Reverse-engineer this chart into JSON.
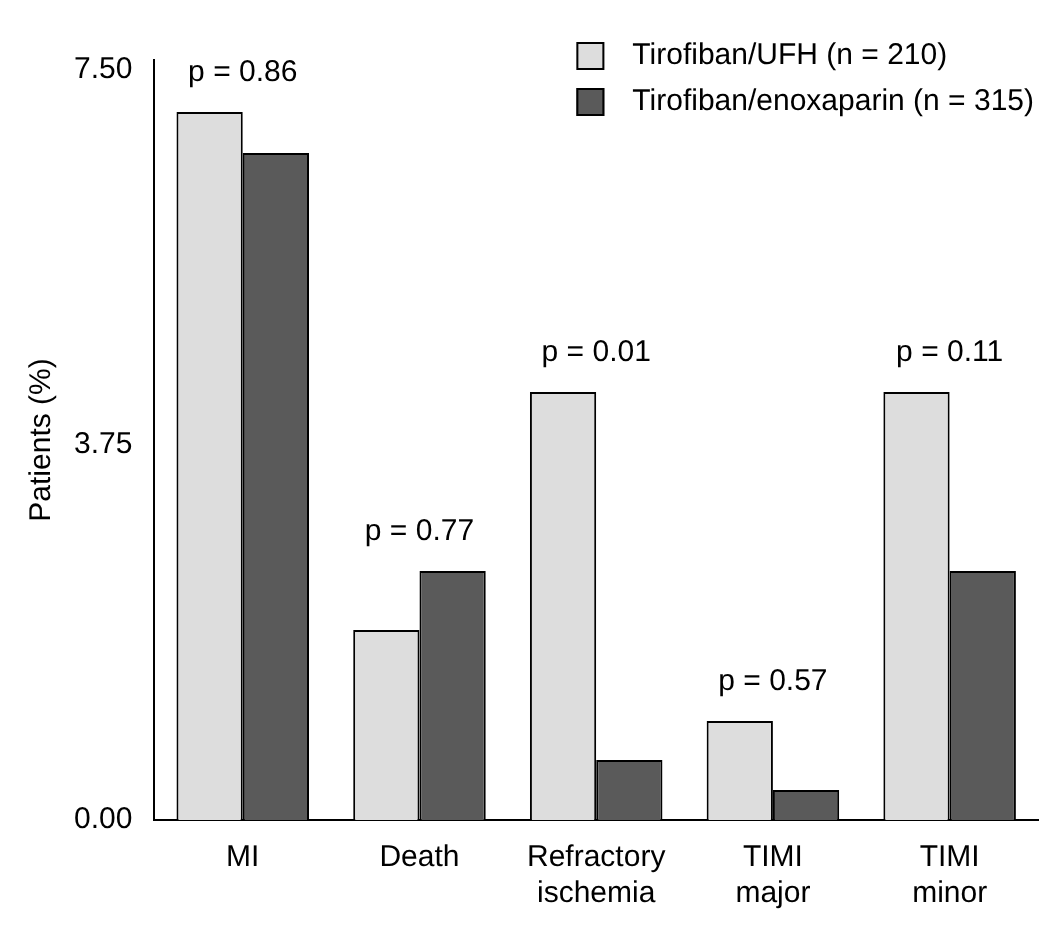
{
  "chart_data": {
    "type": "bar",
    "ylabel": "Patients (%)",
    "categories": [
      "MI",
      "Death",
      "Refractory ischemia",
      "TIMI major",
      "TIMI minor"
    ],
    "series": [
      {
        "name": "Tirofiban/UFH (n = 210)",
        "color": "#dddddd",
        "values": [
          7.08,
          1.9,
          4.28,
          0.99,
          4.28
        ]
      },
      {
        "name": "Tirofiban/enoxaparin (n = 315)",
        "color": "#5a5a5a",
        "values": [
          6.67,
          2.49,
          0.6,
          0.3,
          2.49
        ]
      }
    ],
    "ylim": [
      0,
      7.6
    ],
    "yticks": [
      {
        "value": 0,
        "label": "0.00"
      },
      {
        "value": 3.75,
        "label": "3.75"
      },
      {
        "value": 7.5,
        "label": "7.50"
      }
    ],
    "grid": false,
    "legend": "top right",
    "annotations": [
      "p = 0.86",
      "p = 0.77",
      "p = 0.01",
      "p = 0.57",
      "p = 0.11"
    ]
  }
}
